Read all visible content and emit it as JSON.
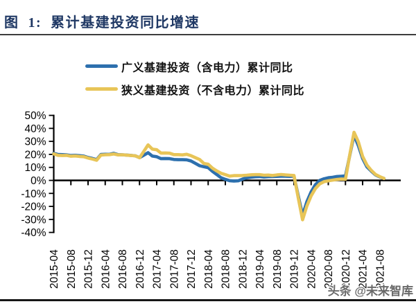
{
  "title": {
    "label": "图  1:  累计基建投资同比增速"
  },
  "legend": {
    "items": [
      {
        "label": "广义基建投资（含电力）累计同比",
        "color": "#2d70ae"
      },
      {
        "label": "狭义基建投资（不含电力）累计同比",
        "color": "#e8c558"
      }
    ]
  },
  "watermark": {
    "text": "头条 @未来智库"
  },
  "chart_data": {
    "type": "line",
    "title": "累计基建投资同比增速",
    "x_start": "2015-04",
    "x_end": "2021-09",
    "x_frequency": "monthly",
    "x_tick_labels": [
      "2015-04",
      "2015-08",
      "2015-12",
      "2016-04",
      "2016-08",
      "2016-12",
      "2017-04",
      "2017-08",
      "2017-12",
      "2018-04",
      "2018-08",
      "2018-12",
      "2019-04",
      "2019-08",
      "2019-12",
      "2020-04",
      "2020-08",
      "2020-12",
      "2021-04",
      "2021-08"
    ],
    "y_tick_labels": [
      "50%",
      "40%",
      "30%",
      "20%",
      "10%",
      "0%",
      "-10%",
      "-20%",
      "-30%",
      "-40%"
    ],
    "ylim": [
      -40,
      50
    ],
    "y_unit": "%",
    "grid": false,
    "legend_position": "top",
    "series": [
      {
        "name": "广义基建投资（含电力）累计同比",
        "color": "#2d70ae",
        "values": [
          20.8,
          19.9,
          19.8,
          19.6,
          19.1,
          19.3,
          19.0,
          18.7,
          17.6,
          16.9,
          16.0,
          19.9,
          20.1,
          20.0,
          20.8,
          19.8,
          19.7,
          19.5,
          19.2,
          18.9,
          17.5,
          19.4,
          21.3,
          18.7,
          18.2,
          16.7,
          16.8,
          16.7,
          16.1,
          15.9,
          15.9,
          15.8,
          14.9,
          13.1,
          11.3,
          10.5,
          9.8,
          7.0,
          4.5,
          2.0,
          0.8,
          -0.2,
          -0.5,
          -0.3,
          1.0,
          2.0,
          2.5,
          2.8,
          3.0,
          2.6,
          2.9,
          3.0,
          3.1,
          3.2,
          3.2,
          3.1,
          3.3,
          -12.0,
          -26.9,
          -16.4,
          -8.8,
          -3.3,
          0.0,
          1.2,
          2.0,
          2.4,
          3.0,
          3.2,
          3.4,
          19.0,
          34.8,
          26.8,
          16.9,
          10.4,
          7.2,
          4.2,
          2.6,
          1.5
        ]
      },
      {
        "name": "狭义基建投资（不含电力）累计同比",
        "color": "#e8c558",
        "values": [
          20.4,
          19.3,
          19.1,
          19.2,
          18.6,
          18.8,
          18.4,
          18.2,
          17.2,
          16.4,
          15.5,
          19.5,
          19.7,
          19.8,
          20.3,
          19.6,
          19.7,
          19.4,
          19.1,
          18.9,
          17.4,
          22.3,
          27.3,
          24.0,
          23.6,
          21.0,
          21.1,
          20.9,
          19.8,
          19.8,
          19.6,
          20.1,
          19.0,
          17.5,
          16.1,
          13.0,
          12.4,
          9.4,
          7.3,
          5.5,
          4.4,
          3.3,
          3.7,
          3.7,
          3.8,
          4.0,
          4.3,
          4.4,
          4.4,
          4.0,
          4.1,
          3.8,
          4.2,
          4.5,
          4.2,
          4.0,
          3.8,
          -13.5,
          -30.3,
          -19.7,
          -11.8,
          -6.3,
          -2.7,
          -1.0,
          -0.3,
          0.2,
          0.7,
          1.0,
          0.9,
          19.5,
          37.0,
          29.7,
          18.4,
          11.8,
          7.8,
          4.6,
          2.9,
          1.5
        ]
      }
    ]
  }
}
